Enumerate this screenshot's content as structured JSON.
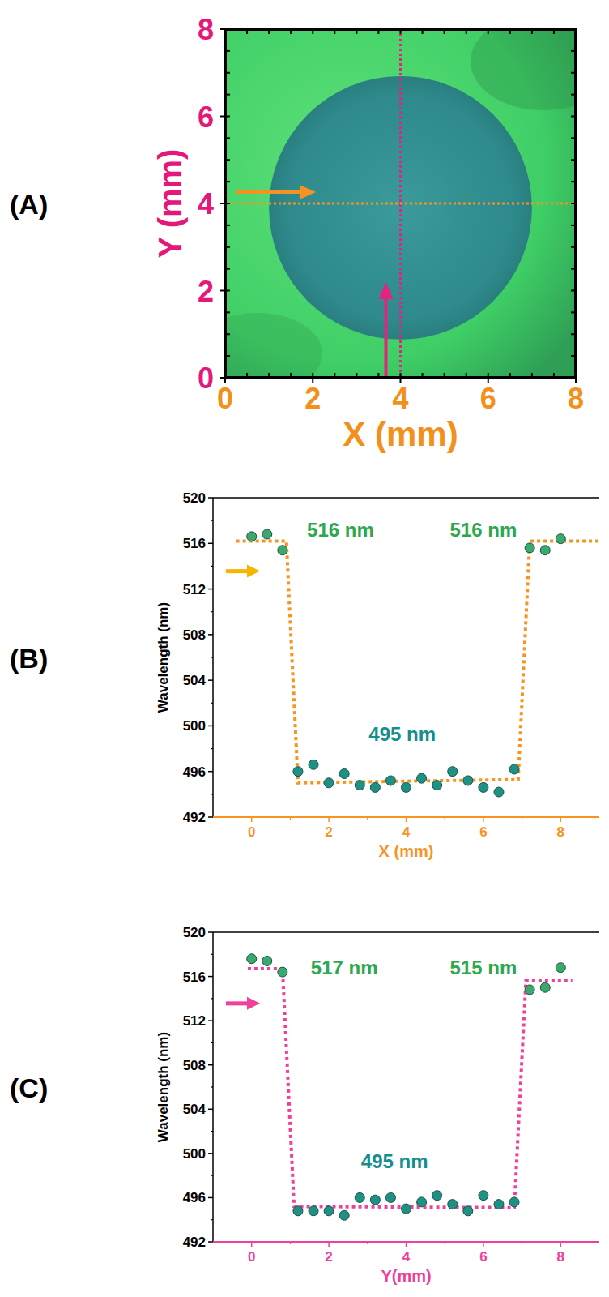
{
  "chart_data": [
    {
      "type": "image",
      "panel": "(A)",
      "xlabel": "X (mm)",
      "ylabel": "Y (mm)",
      "xlim": [
        0,
        8
      ],
      "ylim": [
        0,
        8
      ],
      "xticks": [
        0,
        2,
        4,
        6,
        8
      ],
      "yticks": [
        0,
        2,
        4,
        6,
        8
      ],
      "circle": {
        "cx": 4,
        "cy": 3.9,
        "r": 3
      },
      "guides": [
        {
          "axis": "x",
          "value": 4,
          "color": "#e5227f"
        },
        {
          "axis": "y",
          "value": 4,
          "color": "#f39323"
        }
      ]
    },
    {
      "type": "scatter",
      "panel": "(B)",
      "xlabel": "X (mm)",
      "ylabel": "Wavelength (nm)",
      "xlim": [
        -1,
        9
      ],
      "ylim": [
        492,
        520
      ],
      "xticks": [
        0,
        2,
        4,
        6,
        8
      ],
      "yticks": [
        492,
        496,
        500,
        504,
        508,
        512,
        516,
        520
      ],
      "series": [
        {
          "type": "scatter",
          "marker": "circle",
          "x": [
            0,
            0.4,
            0.8,
            1.2,
            1.6,
            2.0,
            2.4,
            2.8,
            3.2,
            3.6,
            4.0,
            4.4,
            4.8,
            5.2,
            5.6,
            6.0,
            6.4,
            6.8,
            7.2,
            7.6,
            8.0
          ],
          "values": [
            516.6,
            516.8,
            515.4,
            496.0,
            496.6,
            495.0,
            495.8,
            494.8,
            494.6,
            495.2,
            494.6,
            495.4,
            494.8,
            496.0,
            495.2,
            494.6,
            494.2,
            496.2,
            515.6,
            515.4,
            516.4
          ],
          "colors": [
            "#3ba86c",
            "#3ba86c",
            "#3ba86c",
            "#1e9085",
            "#1e9085",
            "#1e9085",
            "#1e9085",
            "#1e9085",
            "#1e9085",
            "#1e9085",
            "#1e9085",
            "#1e9085",
            "#1e9085",
            "#1e9085",
            "#1e9085",
            "#1e9085",
            "#1e9085",
            "#1e9085",
            "#3ba86c",
            "#3ba86c",
            "#3ba86c"
          ]
        },
        {
          "type": "line",
          "line_style": "dotted",
          "color": "#f7931e",
          "x": [
            -0.4,
            0.9,
            1.2,
            6.9,
            7.2,
            9
          ],
          "values": [
            516.2,
            516.2,
            495.0,
            495.3,
            516.2,
            516.2
          ]
        }
      ],
      "annotations": [
        {
          "text": "516 nm",
          "x": 2.3,
          "y": 517.2,
          "color": "#2ea84e"
        },
        {
          "text": "516 nm",
          "x": 6.0,
          "y": 517.2,
          "color": "#2ea84e"
        },
        {
          "text": "495 nm",
          "x": 3.9,
          "y": 499.3,
          "color": "#148e8e"
        }
      ]
    },
    {
      "type": "scatter",
      "panel": "(C)",
      "xlabel": "Y(mm)",
      "ylabel": "Wavelength (nm)",
      "xlim": [
        -1,
        9
      ],
      "ylim": [
        492,
        520
      ],
      "xticks": [
        0,
        2,
        4,
        6,
        8
      ],
      "yticks": [
        492,
        496,
        500,
        504,
        508,
        512,
        516,
        520
      ],
      "series": [
        {
          "type": "scatter",
          "marker": "circle",
          "x": [
            0,
            0.4,
            0.8,
            1.2,
            1.6,
            2.0,
            2.4,
            2.8,
            3.2,
            3.6,
            4.0,
            4.4,
            4.8,
            5.2,
            5.6,
            6.0,
            6.4,
            6.8,
            7.2,
            7.6,
            8.0
          ],
          "values": [
            517.6,
            517.4,
            516.4,
            494.8,
            494.8,
            494.8,
            494.4,
            496.0,
            495.8,
            496.0,
            495.0,
            495.6,
            496.2,
            495.4,
            494.8,
            496.2,
            495.4,
            495.6,
            514.8,
            515.0,
            516.8
          ],
          "colors": [
            "#3ba86c",
            "#3ba86c",
            "#3ba86c",
            "#1e9085",
            "#1e9085",
            "#1e9085",
            "#1e9085",
            "#1e9085",
            "#1e9085",
            "#1e9085",
            "#1e9085",
            "#1e9085",
            "#1e9085",
            "#1e9085",
            "#1e9085",
            "#1e9085",
            "#1e9085",
            "#1e9085",
            "#3ba86c",
            "#3ba86c",
            "#3ba86c"
          ]
        },
        {
          "type": "line",
          "line_style": "dotted",
          "color": "#f0409a",
          "x": [
            -0.1,
            0.8,
            1.1,
            6.8,
            7.1,
            8.3
          ],
          "values": [
            516.7,
            516.7,
            495.2,
            495.1,
            515.6,
            515.6
          ]
        }
      ],
      "annotations": [
        {
          "text": "517 nm",
          "x": 2.4,
          "y": 516.8,
          "color": "#2ea84e"
        },
        {
          "text": "515 nm",
          "x": 6.0,
          "y": 516.8,
          "color": "#2ea84e"
        },
        {
          "text": "495 nm",
          "x": 3.7,
          "y": 499.3,
          "color": "#148e8e"
        }
      ]
    }
  ]
}
